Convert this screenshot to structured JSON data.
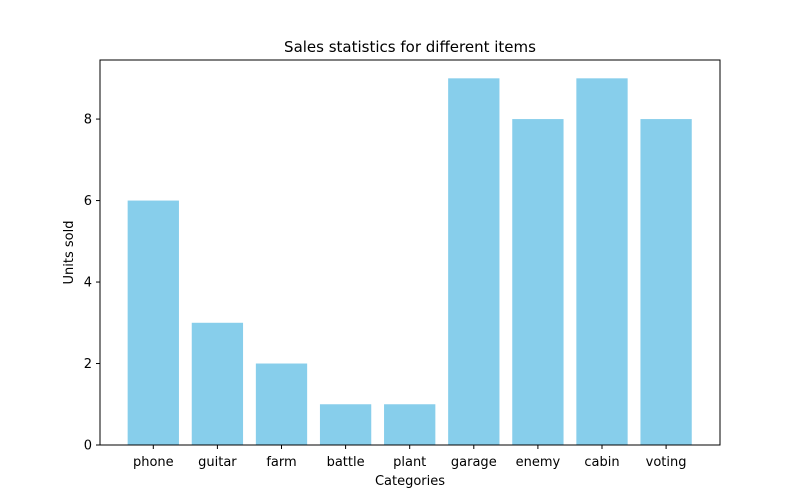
{
  "chart_data": {
    "type": "bar",
    "title": "Sales statistics for different items",
    "xlabel": "Categories",
    "ylabel": "Units sold",
    "categories": [
      "phone",
      "guitar",
      "farm",
      "battle",
      "plant",
      "garage",
      "enemy",
      "cabin",
      "voting"
    ],
    "values": [
      6,
      3,
      2,
      1,
      1,
      9,
      8,
      9,
      8
    ],
    "ylim": [
      0,
      9.45
    ],
    "yticks": [
      0,
      2,
      4,
      6,
      8
    ],
    "bar_color": "#87ceeb",
    "grid": false,
    "legend": "none"
  }
}
